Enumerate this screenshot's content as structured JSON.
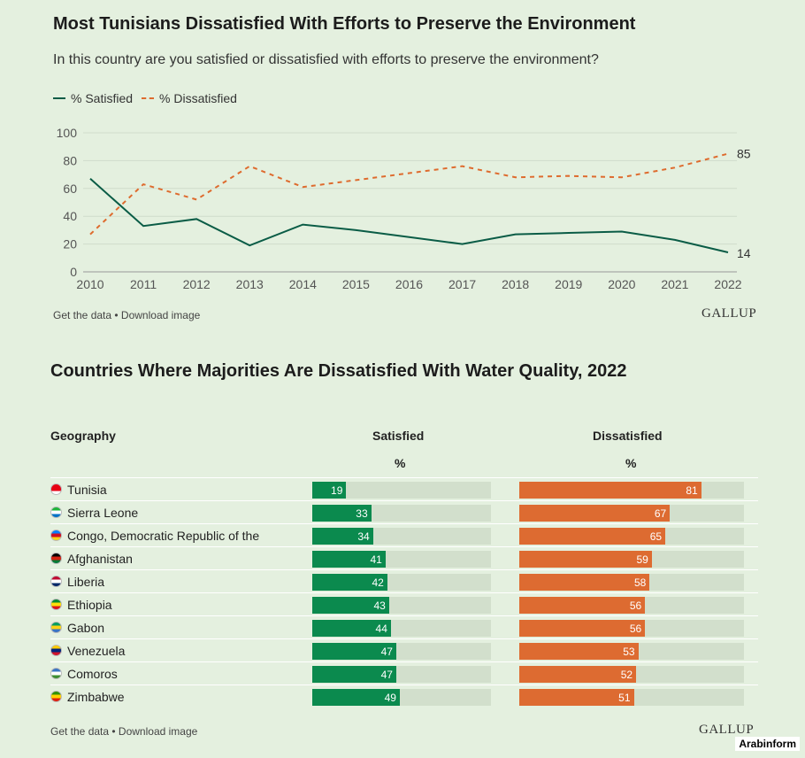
{
  "chart1": {
    "title": "Most Tunisians Dissatisfied With Efforts to Preserve the Environment",
    "subtitle": "In this country are you satisfied or dissatisfied with efforts to preserve the environment?",
    "legend": {
      "satisfied": "% Satisfied",
      "dissatisfied": "% Dissatisfied"
    },
    "footer": {
      "get_data": "Get the data",
      "separator": " • ",
      "download": "Download image"
    },
    "logo": "GALLUP"
  },
  "chart2": {
    "title": "Countries Where Majorities Are Dissatisfied With Water Quality, 2022",
    "headers": {
      "geography": "Geography",
      "satisfied": "Satisfied",
      "dissatisfied": "Dissatisfied",
      "unit": "%"
    },
    "footer": {
      "get_data": "Get the data",
      "separator": " • ",
      "download": "Download image"
    },
    "logo": "GALLUP"
  },
  "colors": {
    "satisfied_line": "#0a5c46",
    "dissatisfied_line": "#de6b2e",
    "satisfied_bar": "#0b8a4e",
    "dissatisfied_bar": "#dd6b31",
    "background": "#e4f0df"
  },
  "watermark": "Arabinform",
  "chart_data": [
    {
      "type": "line",
      "title": "Most Tunisians Dissatisfied With Efforts to Preserve the Environment",
      "subtitle": "In this country are you satisfied or dissatisfied with efforts to preserve the environment?",
      "x": [
        2010,
        2011,
        2012,
        2013,
        2014,
        2015,
        2016,
        2017,
        2018,
        2019,
        2020,
        2021,
        2022
      ],
      "series": [
        {
          "name": "% Satisfied",
          "style": "solid",
          "color": "#0a5c46",
          "values": [
            67,
            33,
            38,
            19,
            34,
            30,
            25,
            20,
            27,
            28,
            29,
            23,
            14
          ]
        },
        {
          "name": "% Dissatisfied",
          "style": "dashed",
          "color": "#de6b2e",
          "values": [
            27,
            63,
            52,
            76,
            61,
            66,
            71,
            76,
            68,
            69,
            68,
            75,
            85
          ]
        }
      ],
      "end_labels": [
        "85",
        "14"
      ],
      "ylim": [
        0,
        100
      ],
      "yticks": [
        0,
        20,
        40,
        60,
        80,
        100
      ],
      "grid": true,
      "legend_position": "top-left"
    },
    {
      "type": "bar",
      "orientation": "horizontal",
      "title": "Countries Where Majorities Are Dissatisfied With Water Quality, 2022",
      "categories": [
        "Tunisia",
        "Sierra Leone",
        "Congo, Democratic Republic of the",
        "Afghanistan",
        "Liberia",
        "Ethiopia",
        "Gabon",
        "Venezuela",
        "Comoros",
        "Zimbabwe"
      ],
      "series": [
        {
          "name": "Satisfied",
          "color": "#0b8a4e",
          "values": [
            19,
            33,
            34,
            41,
            42,
            43,
            44,
            47,
            47,
            49
          ]
        },
        {
          "name": "Dissatisfied",
          "color": "#dd6b31",
          "values": [
            81,
            67,
            65,
            59,
            58,
            56,
            56,
            53,
            52,
            51
          ]
        }
      ],
      "unit": "%",
      "xlim": [
        0,
        100
      ]
    }
  ]
}
